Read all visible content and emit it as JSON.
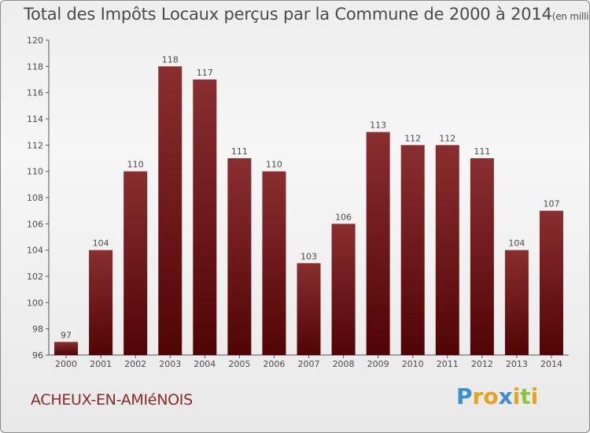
{
  "header": {
    "title": "Total des Impôts Locaux perçus par la Commune de 2000 à 2014",
    "unit": "(en milliers d'€)"
  },
  "footer": {
    "commune": "ACHEUX-EN-AMIéNOIS",
    "brand_letters": [
      "P",
      "r",
      "o",
      "x",
      "i",
      "t",
      "i"
    ],
    "brand_colors": [
      "#3b8fd1",
      "#e8a21b",
      "#e8a21b",
      "#3b8fd1",
      "#e8a21b",
      "#8cc43d",
      "#e8a21b"
    ]
  },
  "chart_data": {
    "type": "bar",
    "title": "Total des Impôts Locaux perçus par la Commune de 2000 à 2014",
    "unit": "(en milliers d'€)",
    "categories": [
      "2000",
      "2001",
      "2002",
      "2003",
      "2004",
      "2005",
      "2006",
      "2007",
      "2008",
      "2009",
      "2010",
      "2011",
      "2012",
      "2013",
      "2014"
    ],
    "values": [
      97,
      104,
      110,
      118,
      117,
      111,
      110,
      103,
      106,
      113,
      112,
      112,
      111,
      104,
      107
    ],
    "ylim": [
      96,
      120
    ],
    "yticks": [
      96,
      98,
      100,
      102,
      104,
      106,
      108,
      110,
      112,
      114,
      116,
      118,
      120
    ],
    "xlabel": "",
    "ylabel": "",
    "grid": false,
    "bar_color_top": "#8a2e30",
    "bar_color_bottom": "#520404"
  }
}
